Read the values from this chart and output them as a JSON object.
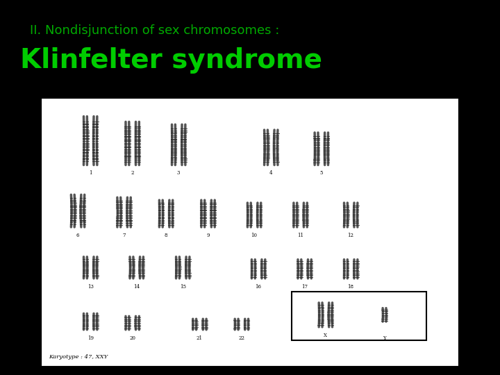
{
  "background_color": "#000000",
  "header_bg": "#000000",
  "subtitle_text": "II. Nondisjunction of sex chromosomes :",
  "subtitle_color": "#00aa00",
  "subtitle_fontsize": 13,
  "title_text": "Klinfelter syndrome",
  "title_color": "#00cc00",
  "title_fontsize": 28,
  "title_bold": true,
  "image_bg": "#ffffff",
  "border_color": "#000000",
  "karyotype_label": "Karyotype : 47, XXY",
  "fig_width": 7.2,
  "fig_height": 5.4,
  "dpi": 100
}
